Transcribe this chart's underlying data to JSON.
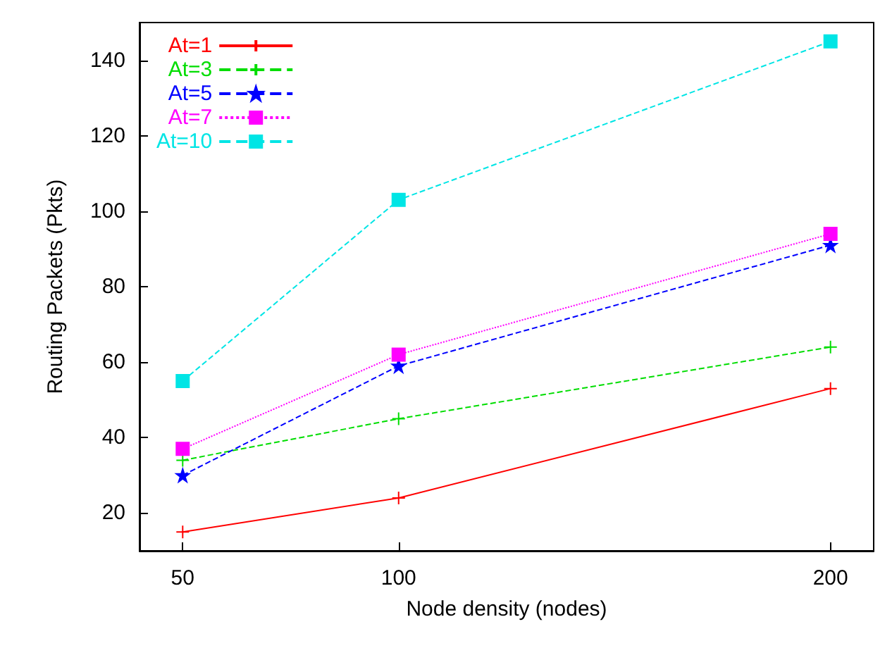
{
  "chart_data": {
    "type": "line",
    "xlabel": "Node density (nodes)",
    "ylabel": "Routing Packets (Pkts)",
    "x": [
      50,
      100,
      200
    ],
    "xlim": [
      40,
      210
    ],
    "xticks": [
      50,
      100,
      200
    ],
    "ylim": [
      10,
      150
    ],
    "yticks": [
      20,
      40,
      60,
      80,
      100,
      120,
      140
    ],
    "grid": false,
    "legend": "top left",
    "series": [
      {
        "name": "At=1",
        "color": "#ff0000",
        "values": [
          15,
          24,
          53
        ],
        "marker": "cross",
        "line_style": "solid"
      },
      {
        "name": "At=3",
        "color": "#00dd00",
        "values": [
          34,
          45,
          64
        ],
        "marker": "cross",
        "line_style": "dashed"
      },
      {
        "name": "At=5",
        "color": "#0000ff",
        "values": [
          30,
          59,
          91
        ],
        "marker": "star",
        "line_style": "dashed"
      },
      {
        "name": "At=7",
        "color": "#ff00ff",
        "values": [
          37,
          62,
          94
        ],
        "marker": "square",
        "line_style": "dotted"
      },
      {
        "name": "At=10",
        "color": "#00e5e5",
        "values": [
          55,
          103,
          145
        ],
        "marker": "square",
        "line_style": "dashed"
      }
    ]
  }
}
